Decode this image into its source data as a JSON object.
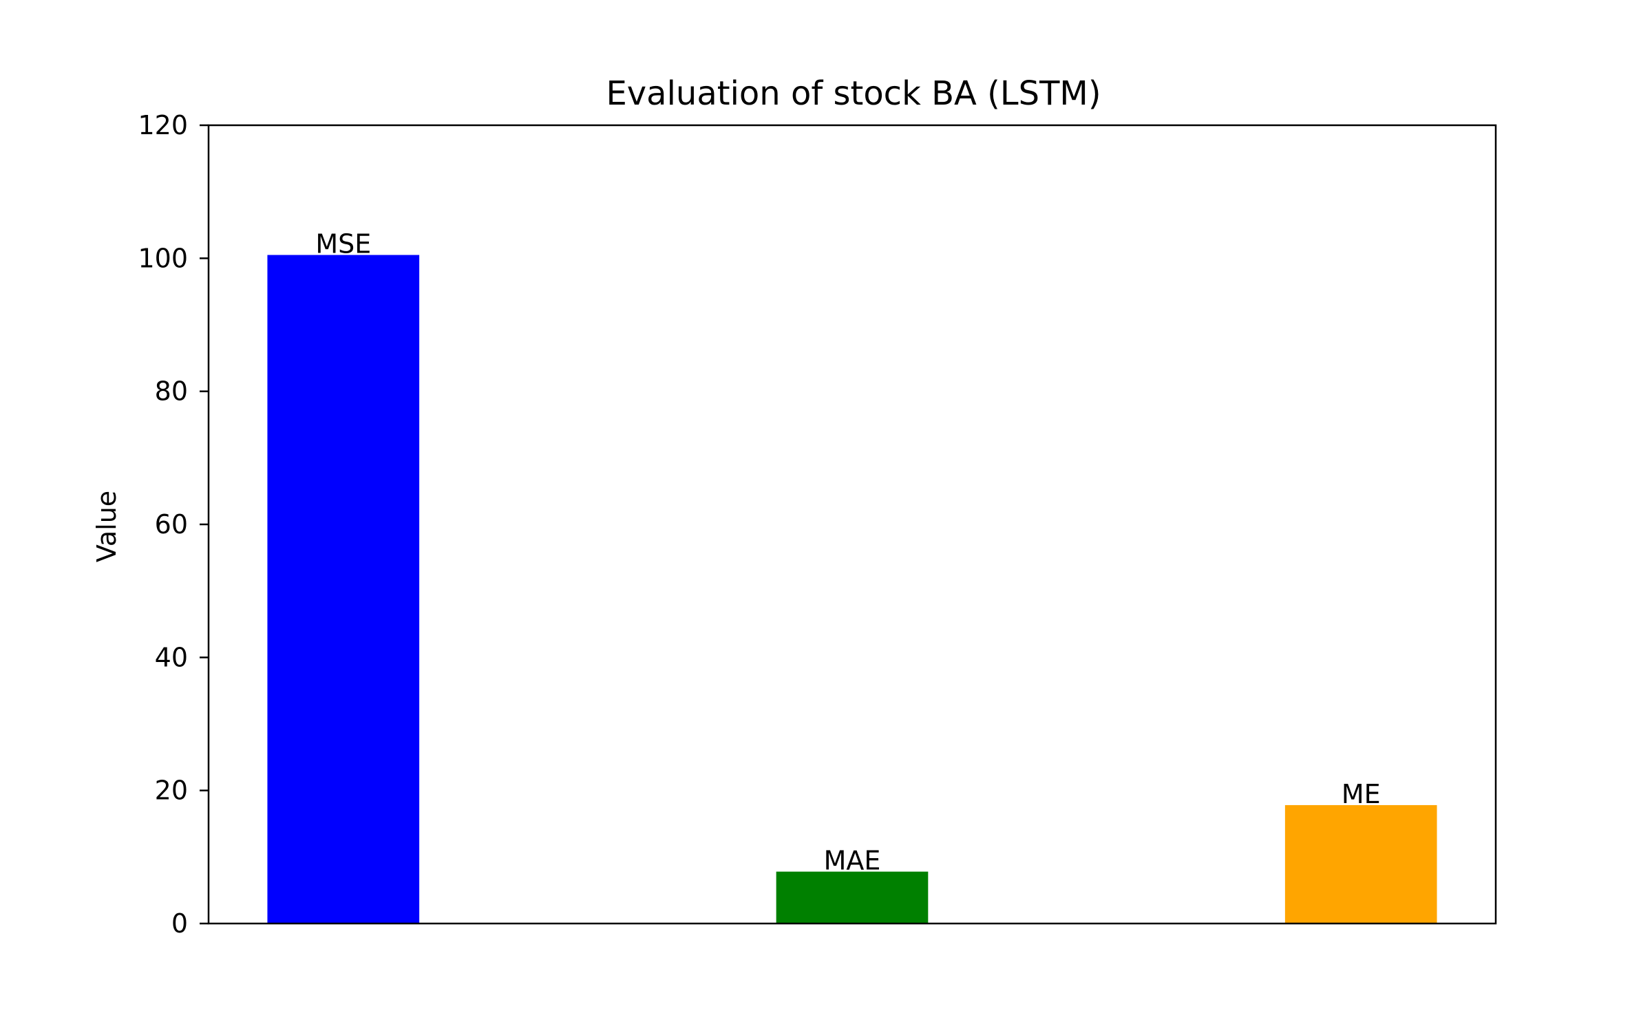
{
  "chart_data": {
    "type": "bar",
    "title": "Evaluation of stock BA (LSTM)",
    "xlabel": "",
    "ylabel": "Value",
    "categories": [
      "MSE",
      "MAE",
      "ME"
    ],
    "values": [
      100.5,
      7.8,
      17.8
    ],
    "colors": [
      "#0000ff",
      "#008000",
      "#ffa500"
    ],
    "ylim": [
      0,
      120
    ],
    "yticks": [
      0,
      20,
      40,
      60,
      80,
      100,
      120
    ],
    "ytick_labels": [
      "0",
      "20",
      "40",
      "60",
      "80",
      "100",
      "120"
    ],
    "grid": false,
    "legend": "none"
  }
}
